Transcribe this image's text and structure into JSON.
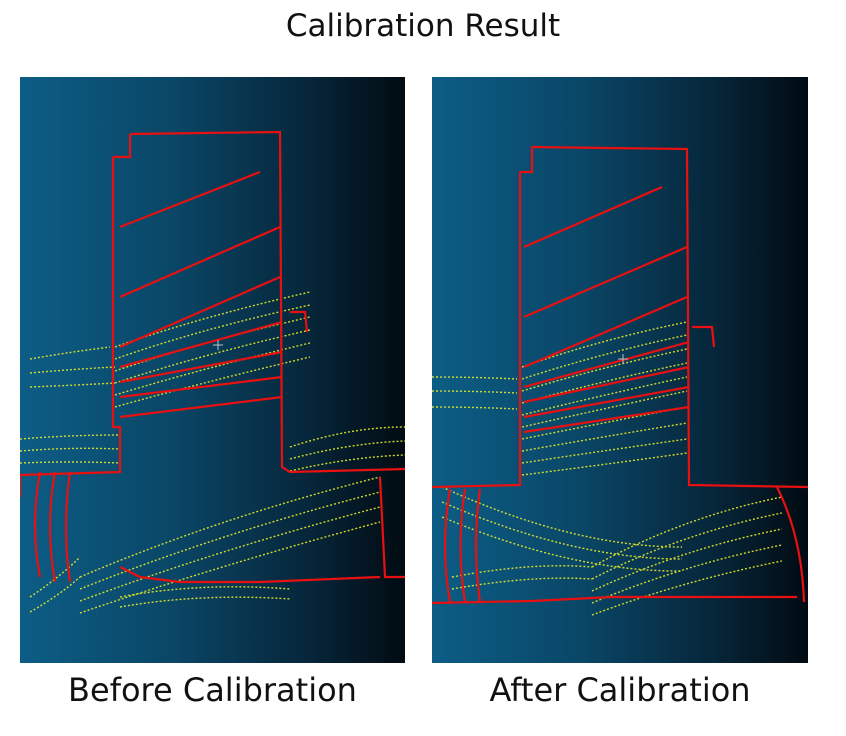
{
  "title": "Calibration Result",
  "panels": [
    {
      "id": "before",
      "caption": "Before Calibration"
    },
    {
      "id": "after",
      "caption": "After Calibration"
    }
  ],
  "colors": {
    "structure": "#e81010",
    "scan": "#e8ec2a",
    "cursor": "#b9c4cc"
  }
}
